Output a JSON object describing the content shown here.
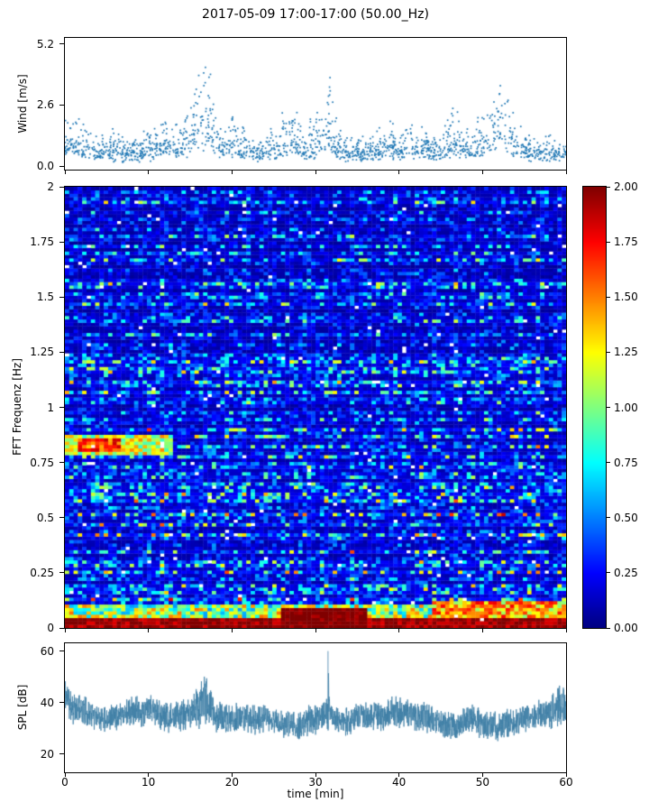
{
  "title": "2017-05-09 17:00-17:00 (50.00_Hz)",
  "xlabel": "time [min]",
  "background": "#ffffff",
  "x_tick_vals": [
    0,
    10,
    20,
    30,
    40,
    50,
    60
  ],
  "x_tick_labels": [
    "0",
    "10",
    "20",
    "30",
    "40",
    "50",
    "60"
  ],
  "xlim": [
    0,
    60
  ],
  "chart_data": [
    {
      "type": "scatter",
      "name": "wind-speed",
      "ylabel": "Wind [m/s]",
      "ytick_vals": [
        0.0,
        2.6,
        5.2
      ],
      "ytick_labels": [
        "0.0",
        "2.6",
        "5.2"
      ],
      "ylim": [
        -0.15,
        5.45
      ],
      "marker_color": "#1f77b4",
      "n_points": 1700,
      "seed": 7,
      "envelope": [
        [
          0,
          2.2
        ],
        [
          1,
          2.6
        ],
        [
          2,
          2.3
        ],
        [
          3,
          1.6
        ],
        [
          4,
          1.3
        ],
        [
          5,
          1.6
        ],
        [
          6,
          1.4
        ],
        [
          7,
          1.1
        ],
        [
          8,
          1.5
        ],
        [
          9,
          1.2
        ],
        [
          10,
          1.5
        ],
        [
          11,
          1.9
        ],
        [
          12,
          2.1
        ],
        [
          13,
          1.7
        ],
        [
          14,
          2.3
        ],
        [
          15,
          2.8
        ],
        [
          16,
          4.3
        ],
        [
          16.8,
          5.0
        ],
        [
          17.5,
          3.6
        ],
        [
          18,
          2.6
        ],
        [
          19,
          1.8
        ],
        [
          20,
          2.4
        ],
        [
          21,
          1.9
        ],
        [
          22,
          1.6
        ],
        [
          23,
          1.4
        ],
        [
          24,
          1.3
        ],
        [
          25,
          1.7
        ],
        [
          26,
          2.2
        ],
        [
          27,
          2.9
        ],
        [
          28,
          2.4
        ],
        [
          29,
          1.7
        ],
        [
          30,
          2.2
        ],
        [
          31,
          3.4
        ],
        [
          31.5,
          5.2
        ],
        [
          32,
          3.0
        ],
        [
          33,
          1.6
        ],
        [
          34,
          1.3
        ],
        [
          35,
          1.1
        ],
        [
          36,
          1.2
        ],
        [
          37,
          1.5
        ],
        [
          38,
          1.7
        ],
        [
          39,
          1.9
        ],
        [
          40,
          1.6
        ],
        [
          41,
          1.9
        ],
        [
          42,
          2.1
        ],
        [
          43,
          1.6
        ],
        [
          44,
          1.2
        ],
        [
          45,
          1.5
        ],
        [
          46,
          2.7
        ],
        [
          47,
          2.4
        ],
        [
          48,
          1.6
        ],
        [
          49,
          2.1
        ],
        [
          50,
          2.7
        ],
        [
          51,
          3.3
        ],
        [
          52,
          4.2
        ],
        [
          52.5,
          4.6
        ],
        [
          53,
          3.6
        ],
        [
          54,
          2.4
        ],
        [
          55,
          1.7
        ],
        [
          56,
          1.3
        ],
        [
          57,
          1.1
        ],
        [
          58,
          1.4
        ],
        [
          59,
          1.2
        ],
        [
          60,
          1.3
        ]
      ]
    },
    {
      "type": "heatmap",
      "name": "fft-spectrogram",
      "ylabel": "FFT Frequenz [Hz]",
      "ytick_vals": [
        0,
        0.25,
        0.5,
        0.75,
        1,
        1.25,
        1.5,
        1.75,
        2
      ],
      "ytick_labels": [
        "0",
        "0.25",
        "0.5",
        "0.75",
        "1",
        "1.25",
        "1.5",
        "1.75",
        "2"
      ],
      "ylim": [
        0,
        2
      ],
      "colormap": "jet",
      "vmin": 0,
      "vmax": 2,
      "rows": 130,
      "cols": 116,
      "seed": 5,
      "base_level": 0.55,
      "freq_slope": 0.35,
      "white_speck_chance": 0.012,
      "features": [
        {
          "x0": 0,
          "x1": 60,
          "f0": 0.0,
          "f1": 0.045,
          "level": 1.95,
          "jitter": 0.15
        },
        {
          "x0": 0,
          "x1": 60,
          "f0": 0.045,
          "f1": 0.1,
          "level": 1.05,
          "jitter": 0.5
        },
        {
          "x0": 26,
          "x1": 36,
          "f0": 0.0,
          "f1": 0.09,
          "level": 2.0,
          "jitter": 0.1
        },
        {
          "x0": 0,
          "x1": 13,
          "f0": 0.78,
          "f1": 0.88,
          "level": 1.15,
          "jitter": 0.35
        },
        {
          "x0": 1.5,
          "x1": 6.5,
          "f0": 0.8,
          "f1": 0.86,
          "level": 1.6,
          "jitter": 0.3
        },
        {
          "x0": 44,
          "x1": 60,
          "f0": 0.03,
          "f1": 0.12,
          "level": 1.4,
          "jitter": 0.4
        }
      ],
      "colorbar": {
        "vmin": 0,
        "vmax": 2,
        "tick_vals": [
          0,
          0.25,
          0.5,
          0.75,
          1,
          1.25,
          1.5,
          1.75,
          2
        ],
        "tick_labels": [
          "0.00",
          "0.25",
          "0.50",
          "0.75",
          "1.00",
          "1.25",
          "1.50",
          "1.75",
          "2.00"
        ]
      }
    },
    {
      "type": "line",
      "name": "spl",
      "ylabel": "SPL [dB]",
      "ytick_vals": [
        20,
        40,
        60
      ],
      "ytick_labels": [
        "20",
        "40",
        "60"
      ],
      "ylim": [
        13,
        63
      ],
      "line_color": "#3f7fa6",
      "n_points": 2600,
      "seed": 11,
      "spike": {
        "x": 31.5,
        "y_top": 60,
        "y_bottom": 30
      },
      "mean": [
        [
          0,
          44
        ],
        [
          0.5,
          40
        ],
        [
          1,
          38
        ],
        [
          2,
          37
        ],
        [
          3,
          36
        ],
        [
          4,
          35
        ],
        [
          5,
          34
        ],
        [
          6,
          35
        ],
        [
          7,
          36
        ],
        [
          8,
          37
        ],
        [
          9,
          36
        ],
        [
          10,
          37
        ],
        [
          11,
          36
        ],
        [
          12,
          35
        ],
        [
          13,
          34
        ],
        [
          14,
          35
        ],
        [
          15,
          36
        ],
        [
          16,
          38
        ],
        [
          16.8,
          42
        ],
        [
          17.5,
          38
        ],
        [
          18,
          35
        ],
        [
          19,
          34
        ],
        [
          20,
          33
        ],
        [
          21,
          34
        ],
        [
          22,
          34
        ],
        [
          23,
          33
        ],
        [
          24,
          34
        ],
        [
          25,
          33
        ],
        [
          26,
          32
        ],
        [
          27,
          31
        ],
        [
          28,
          31
        ],
        [
          29,
          33
        ],
        [
          30,
          34
        ],
        [
          31,
          35
        ],
        [
          31.5,
          40
        ],
        [
          32,
          35
        ],
        [
          33,
          33
        ],
        [
          34,
          33
        ],
        [
          35,
          34
        ],
        [
          36,
          34
        ],
        [
          37,
          35
        ],
        [
          38,
          35
        ],
        [
          39,
          36
        ],
        [
          40,
          36
        ],
        [
          41,
          36
        ],
        [
          42,
          35
        ],
        [
          43,
          34
        ],
        [
          44,
          33
        ],
        [
          45,
          32
        ],
        [
          46,
          31
        ],
        [
          47,
          32
        ],
        [
          48,
          33
        ],
        [
          49,
          33
        ],
        [
          50,
          32
        ],
        [
          51,
          31
        ],
        [
          52,
          30
        ],
        [
          53,
          32
        ],
        [
          54,
          33
        ],
        [
          55,
          34
        ],
        [
          56,
          35
        ],
        [
          57,
          35
        ],
        [
          58,
          36
        ],
        [
          59,
          38
        ],
        [
          59.5,
          40
        ],
        [
          60,
          37
        ]
      ],
      "amp": [
        [
          0,
          9
        ],
        [
          1,
          7
        ],
        [
          5,
          6
        ],
        [
          10,
          7
        ],
        [
          15,
          7
        ],
        [
          16.8,
          11
        ],
        [
          18,
          7
        ],
        [
          25,
          6
        ],
        [
          30,
          7
        ],
        [
          31.3,
          6
        ],
        [
          31.5,
          18
        ],
        [
          31.7,
          6
        ],
        [
          40,
          7
        ],
        [
          45,
          6
        ],
        [
          50,
          7
        ],
        [
          55,
          6
        ],
        [
          58,
          7
        ],
        [
          59.5,
          10
        ],
        [
          60,
          8
        ]
      ]
    }
  ]
}
